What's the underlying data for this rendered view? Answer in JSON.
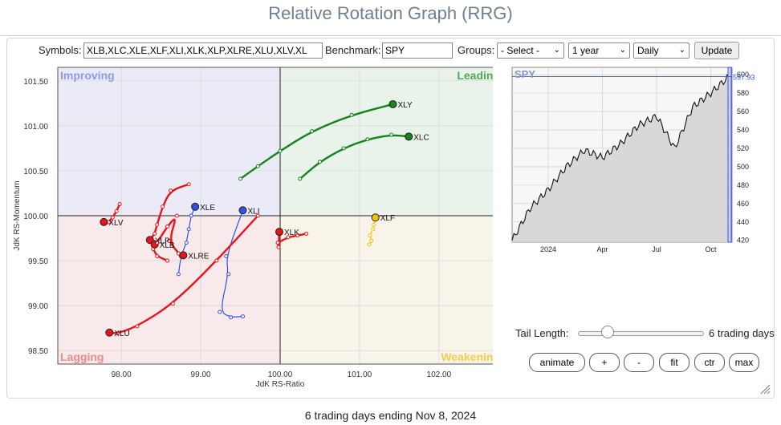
{
  "header": {
    "title": "Relative Rotation Graph (RRG)"
  },
  "controls": {
    "symbols_label": "Symbols:",
    "symbols_value": "XLB,XLC,XLE,XLF,XLI,XLK,XLP,XLRE,XLU,XLV,XL",
    "benchmark_label": "Benchmark:",
    "benchmark_value": "SPY",
    "groups_label": "Groups:",
    "groups_value": "- Select -",
    "period_value": "1 year",
    "frequency_value": "Daily",
    "update_label": "Update"
  },
  "bottom": {
    "tail_label": "Tail Length:",
    "tail_value_text": "6 trading days",
    "tail_fraction": 0.1,
    "buttons": [
      "animate",
      "+",
      "-",
      "fit",
      "ctr",
      "max"
    ]
  },
  "footer": {
    "text": "6 trading days ending Nov 8, 2024"
  },
  "colors": {
    "lagging": "#e8141b",
    "leading": "#13851a",
    "weakening": "#f2c200",
    "improving": "#3350e0"
  },
  "chart_data": [
    {
      "type": "scatter",
      "title": "",
      "xlabel": "JdK RS-Ratio",
      "ylabel": "JdK RS-Momentum",
      "xlim": [
        97.2,
        102.8
      ],
      "ylim": [
        98.35,
        101.65
      ],
      "xticks": [
        "98.00",
        "99.00",
        "100.00",
        "101.00",
        "102.00"
      ],
      "yticks": [
        "101.50",
        "101.00",
        "100.50",
        "100.00",
        "99.50",
        "99.00",
        "98.50"
      ],
      "quadrants": {
        "top_left": "Improving",
        "top_right": "Leading",
        "bottom_left": "Lagging",
        "bottom_right": "Weakening"
      },
      "series": [
        {
          "name": "XLY",
          "quadrant": "leading",
          "points": [
            [
              99.5,
              100.41
            ],
            [
              99.72,
              100.55
            ],
            [
              100.0,
              100.72
            ],
            [
              100.4,
              100.94
            ],
            [
              100.9,
              101.12
            ],
            [
              101.42,
              101.24
            ]
          ]
        },
        {
          "name": "XLC",
          "quadrant": "leading",
          "points": [
            [
              100.25,
              100.41
            ],
            [
              100.5,
              100.6
            ],
            [
              100.8,
              100.75
            ],
            [
              101.1,
              100.85
            ],
            [
              101.4,
              100.9
            ],
            [
              101.62,
              100.88
            ]
          ]
        },
        {
          "name": "XLE",
          "quadrant": "improving",
          "points": [
            [
              98.72,
              99.35
            ],
            [
              98.75,
              99.55
            ],
            [
              98.82,
              99.7
            ],
            [
              98.85,
              99.85
            ],
            [
              98.88,
              100.0
            ],
            [
              98.93,
              100.1
            ]
          ]
        },
        {
          "name": "XLI",
          "quadrant": "improving",
          "points": [
            [
              99.53,
              98.88
            ],
            [
              99.38,
              98.87
            ],
            [
              99.24,
              98.93
            ],
            [
              99.35,
              99.35
            ],
            [
              99.32,
              99.55
            ],
            [
              99.53,
              100.06
            ]
          ]
        },
        {
          "name": "XLF",
          "quadrant": "weakening",
          "points": [
            [
              101.12,
              99.68
            ],
            [
              101.15,
              99.72
            ],
            [
              101.13,
              99.78
            ],
            [
              101.17,
              99.85
            ],
            [
              101.18,
              99.9
            ],
            [
              101.2,
              99.98
            ]
          ]
        },
        {
          "name": "XLK",
          "quadrant": "lagging",
          "points": [
            [
              100.33,
              99.8
            ],
            [
              100.22,
              99.78
            ],
            [
              100.1,
              99.76
            ],
            [
              99.97,
              99.7
            ],
            [
              99.98,
              99.65
            ],
            [
              99.99,
              99.82
            ]
          ]
        },
        {
          "name": "XLV",
          "quadrant": "lagging",
          "points": [
            [
              97.98,
              100.13
            ],
            [
              97.94,
              100.05
            ],
            [
              97.89,
              99.98
            ],
            [
              97.84,
              99.93
            ],
            [
              97.8,
              99.93
            ],
            [
              97.78,
              99.93
            ]
          ]
        },
        {
          "name": "XLP",
          "quadrant": "lagging",
          "points": [
            [
              98.85,
              100.35
            ],
            [
              98.62,
              100.28
            ],
            [
              98.52,
              100.1
            ],
            [
              98.45,
              99.9
            ],
            [
              98.42,
              99.8
            ],
            [
              98.36,
              99.73
            ]
          ]
        },
        {
          "name": "XLB",
          "quadrant": "lagging",
          "points": [
            [
              98.58,
              99.5
            ],
            [
              98.45,
              99.55
            ],
            [
              98.4,
              99.63
            ],
            [
              98.42,
              99.68
            ],
            [
              98.41,
              99.71
            ],
            [
              98.42,
              99.68
            ]
          ]
        },
        {
          "name": "XLRE",
          "quadrant": "lagging",
          "points": [
            [
              98.45,
              99.7
            ],
            [
              98.58,
              99.88
            ],
            [
              98.7,
              100.0
            ],
            [
              98.6,
              99.72
            ],
            [
              98.72,
              99.58
            ],
            [
              98.78,
              99.56
            ]
          ]
        },
        {
          "name": "XLU",
          "quadrant": "lagging",
          "points": [
            [
              99.72,
              100.0
            ],
            [
              99.2,
              99.5
            ],
            [
              98.65,
              99.02
            ],
            [
              98.2,
              98.77
            ],
            [
              97.95,
              98.69
            ],
            [
              97.85,
              98.7
            ]
          ]
        }
      ]
    },
    {
      "type": "area",
      "title": "SPY",
      "xticks": [
        "2024",
        "Apr",
        "Jul",
        "Oct"
      ],
      "yticks": [
        "420",
        "440",
        "460",
        "480",
        "500",
        "520",
        "540",
        "560",
        "580",
        "600"
      ],
      "ylim": [
        418,
        608
      ],
      "last_value": "597.93",
      "x": [
        "2023-11",
        "2023-12",
        "2024-01",
        "2024-02",
        "2024-03",
        "2024-04",
        "2024-05",
        "2024-06",
        "2024-07",
        "2024-08",
        "2024-09",
        "2024-10",
        "2024-11"
      ],
      "values": [
        420,
        455,
        475,
        500,
        518,
        510,
        525,
        545,
        555,
        520,
        565,
        580,
        598
      ]
    }
  ]
}
